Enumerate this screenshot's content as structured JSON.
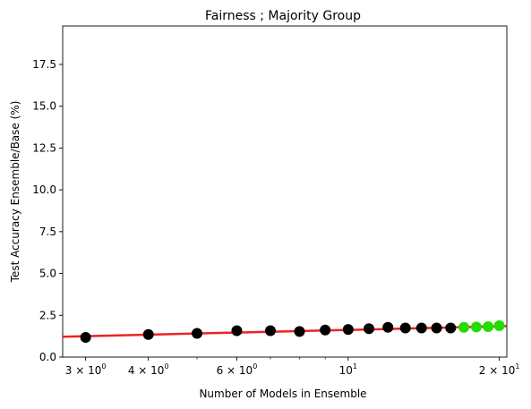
{
  "chart_data": {
    "type": "scatter",
    "title": "Fairness ; Majority Group",
    "xlabel": "Number of Models in Ensemble",
    "ylabel": "Test Accuracy Ensemble/Base (%)",
    "xscale": "log",
    "xlim": [
      2.7,
      20.7
    ],
    "ylim": [
      0,
      19.8
    ],
    "xticks": [
      {
        "value": 3,
        "label": "3 × 10^0"
      },
      {
        "value": 4,
        "label": "4 × 10^0"
      },
      {
        "value": 6,
        "label": "6 × 10^0"
      },
      {
        "value": 10,
        "label": "10^1"
      },
      {
        "value": 20,
        "label": "2 × 10^1"
      }
    ],
    "xticks_minor": [
      5,
      7,
      8,
      9
    ],
    "yticks": [
      {
        "value": 0,
        "label": "0.0"
      },
      {
        "value": 2.5,
        "label": "2.5"
      },
      {
        "value": 5,
        "label": "5.0"
      },
      {
        "value": 7.5,
        "label": "7.5"
      },
      {
        "value": 10,
        "label": "10.0"
      },
      {
        "value": 12.5,
        "label": "12.5"
      },
      {
        "value": 15,
        "label": "15.0"
      },
      {
        "value": 17.5,
        "label": "17.5"
      }
    ],
    "grid": false,
    "series": [
      {
        "color": "#000000",
        "x": [
          3,
          4,
          5,
          6,
          7,
          8,
          9,
          10,
          11,
          12,
          13,
          14,
          15,
          16
        ],
        "y": [
          1.18,
          1.35,
          1.42,
          1.58,
          1.58,
          1.53,
          1.62,
          1.65,
          1.7,
          1.78,
          1.74,
          1.74,
          1.74,
          1.74
        ]
      },
      {
        "color": "#22dd00",
        "x": [
          17,
          18,
          19,
          20
        ],
        "y": [
          1.78,
          1.8,
          1.82,
          1.88
        ]
      }
    ],
    "fit_line": {
      "color": "#ee2222",
      "x": [
        2.7,
        20.7
      ],
      "y": [
        1.22,
        1.85
      ]
    }
  }
}
